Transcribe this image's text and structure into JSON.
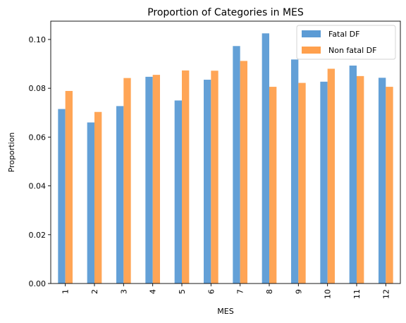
{
  "chart_data": {
    "type": "bar",
    "title": "Proportion of Categories in MES",
    "xlabel": "MES",
    "ylabel": "Proportion",
    "categories": [
      "1",
      "2",
      "3",
      "4",
      "5",
      "6",
      "7",
      "8",
      "9",
      "10",
      "11",
      "12"
    ],
    "series": [
      {
        "name": "Fatal DF",
        "color": "#5b9bd5",
        "values": [
          0.0715,
          0.066,
          0.0727,
          0.0847,
          0.075,
          0.0835,
          0.0973,
          0.1025,
          0.0918,
          0.0827,
          0.0893,
          0.0843
        ]
      },
      {
        "name": "Non fatal DF",
        "color": "#ffa04d",
        "values": [
          0.0789,
          0.0703,
          0.0842,
          0.0855,
          0.0873,
          0.0872,
          0.0912,
          0.0806,
          0.0822,
          0.088,
          0.085,
          0.0806
        ]
      }
    ],
    "ylim": [
      0,
      0.1075
    ],
    "yticks": [
      0.0,
      0.02,
      0.04,
      0.06,
      0.08,
      0.1
    ],
    "ytick_labels": [
      "0.00",
      "0.02",
      "0.04",
      "0.06",
      "0.08",
      "0.10"
    ],
    "grid": false,
    "legend_position": "top-right"
  }
}
